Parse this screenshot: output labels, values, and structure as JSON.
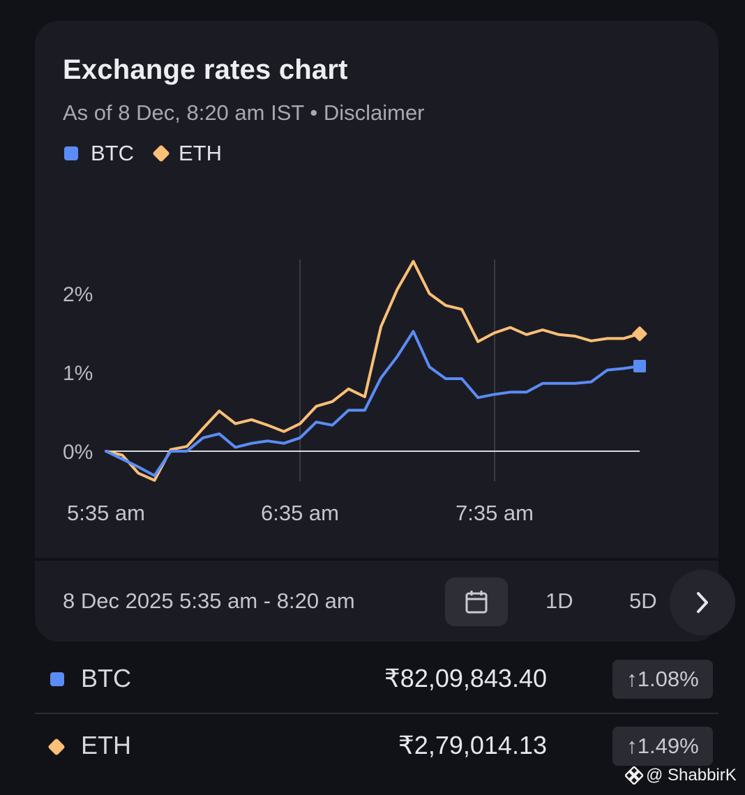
{
  "card": {
    "title": "Exchange rates chart",
    "subtitle": "As of 8 Dec, 8:20 am IST • Disclaimer",
    "legend": [
      {
        "label": "BTC",
        "color": "#5b8cf6",
        "marker": "square"
      },
      {
        "label": "ETH",
        "color": "#fbbf77",
        "marker": "diamond"
      }
    ]
  },
  "chart_data": {
    "type": "line",
    "x_labels": [
      "5:35 am",
      "6:35 am",
      "7:35 am"
    ],
    "y_labels": [
      "2%",
      "1%",
      "0%"
    ],
    "ylim": [
      -0.4,
      2.4
    ],
    "grid": "vertical lines at 6:35 am and 7:35 am, baseline at 0%",
    "series": [
      {
        "name": "BTC",
        "color": "#5b8cf6",
        "values": [
          0.0,
          -0.1,
          -0.2,
          -0.31,
          0.0,
          0.0,
          0.17,
          0.22,
          0.05,
          0.1,
          0.13,
          0.1,
          0.17,
          0.37,
          0.33,
          0.52,
          0.52,
          0.93,
          1.2,
          1.52,
          1.07,
          0.92,
          0.92,
          0.68,
          0.72,
          0.75,
          0.75,
          0.86,
          0.86,
          0.86,
          0.88,
          1.03,
          1.05,
          1.08
        ]
      },
      {
        "name": "ETH",
        "color": "#fbbf77",
        "values": [
          0.0,
          -0.05,
          -0.28,
          -0.37,
          0.02,
          0.06,
          0.29,
          0.51,
          0.35,
          0.4,
          0.33,
          0.25,
          0.35,
          0.57,
          0.63,
          0.79,
          0.69,
          1.58,
          2.05,
          2.41,
          2.0,
          1.85,
          1.8,
          1.39,
          1.5,
          1.57,
          1.48,
          1.54,
          1.48,
          1.46,
          1.4,
          1.43,
          1.43,
          1.49
        ]
      }
    ]
  },
  "controls": {
    "date_range": "8 Dec 2025 5:35 am - 8:20 am",
    "periods": [
      "1D",
      "5D"
    ],
    "calendar_icon": "calendar-icon",
    "next_icon": "chevron-right-icon"
  },
  "rows": [
    {
      "symbol": "BTC",
      "price": "₹82,09,843.40",
      "change": "1.08%",
      "color": "#5b8cf6"
    },
    {
      "symbol": "ETH",
      "price": "₹2,79,014.13",
      "change": "1.49%",
      "color": "#fbbf77"
    }
  ],
  "watermark": "@ ShabbirK"
}
